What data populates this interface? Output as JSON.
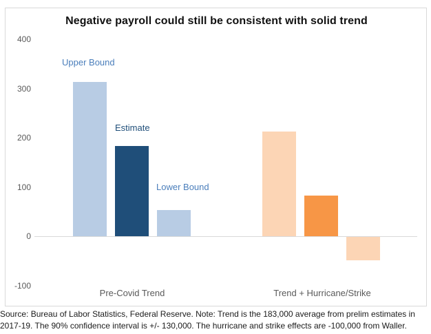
{
  "chart_data": {
    "type": "bar",
    "title": "Negative payroll could still be consistent with solid trend",
    "categories": [
      "Pre-Covid Trend",
      "Trend + Hurricane/Strike"
    ],
    "series": [
      {
        "name": "Upper Bound",
        "values": [
          313,
          213
        ],
        "colors": [
          "#b8cce4",
          "#fcd5b5"
        ]
      },
      {
        "name": "Estimate",
        "values": [
          183,
          83
        ],
        "colors": [
          "#1f4e79",
          "#f79646"
        ]
      },
      {
        "name": "Lower Bound",
        "values": [
          53,
          -47
        ],
        "colors": [
          "#b8cce4",
          "#fcd5b5"
        ]
      }
    ],
    "annotations": [
      {
        "text": "Upper Bound",
        "color": "#4a7ebb"
      },
      {
        "text": "Estimate",
        "color": "#1f4e79"
      },
      {
        "text": "Lower Bound",
        "color": "#4a7ebb"
      }
    ],
    "xlabel": "",
    "ylabel": "",
    "ylim": [
      -100,
      400
    ],
    "yticks": [
      400,
      300,
      200,
      100,
      0,
      -100
    ],
    "grid": false,
    "legend": "none",
    "axis_color": "#d9d9d9",
    "tick_color": "#595959"
  },
  "source_note": "Source: Bureau of Labor Statistics, Federal Reserve. Note: Trend is the 183,000 average from prelim estimates in 2017-19. The 90% confidence interval is +/- 130,000. The hurricane and strike effects are -100,000 from Waller."
}
